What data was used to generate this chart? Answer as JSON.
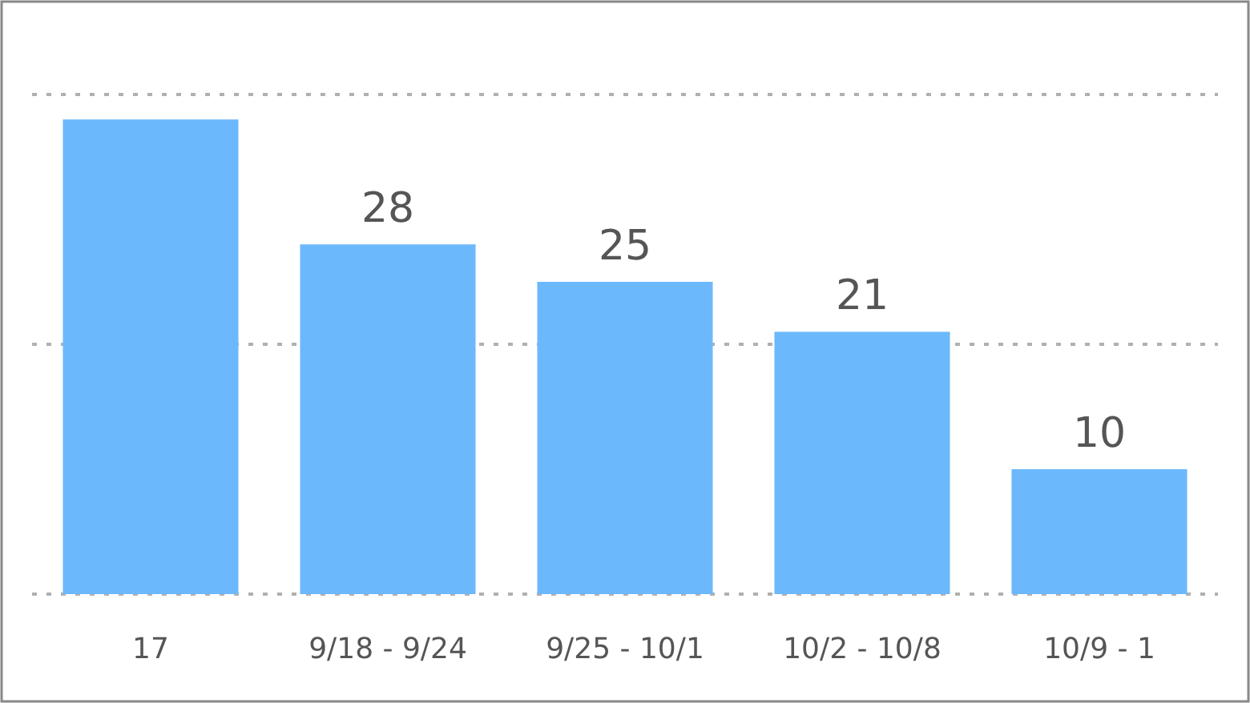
{
  "chart_data": {
    "type": "bar",
    "categories": [
      "17",
      "9/18 - 9/24",
      "9/25 - 10/1",
      "10/2 - 10/8",
      "10/9 - 1"
    ],
    "values": [
      38,
      28,
      25,
      21,
      10
    ],
    "value_labels": [
      null,
      "28",
      "25",
      "21",
      "10"
    ],
    "color": "#6cb8fc",
    "ylim": [
      0,
      40
    ],
    "yticks": [
      {
        "value": 0,
        "label": null
      },
      {
        "value": 20,
        "label": null
      },
      {
        "value": 40,
        "label": null
      }
    ],
    "grid": "y",
    "tick_labels": "x"
  }
}
